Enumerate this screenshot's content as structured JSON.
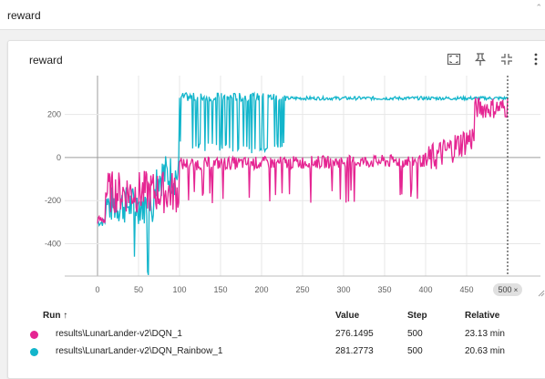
{
  "header": {
    "title": "reward"
  },
  "card": {
    "title": "reward"
  },
  "icons": {
    "fit": "fit-domain-icon",
    "pin": "pin-icon",
    "collapse": "collapse-icon",
    "more": "more-vert-icon"
  },
  "colors": {
    "dqn": "#e52592",
    "rainbow": "#12b5cb",
    "grid": "#e7e7e7",
    "axis": "#9e9e9e"
  },
  "chart_data": {
    "type": "line",
    "title": "reward",
    "xlabel": "",
    "ylabel": "",
    "xlim": [
      -40,
      540
    ],
    "ylim": [
      -550,
      380
    ],
    "x_ticks": [
      0,
      50,
      100,
      150,
      200,
      250,
      300,
      350,
      400,
      450
    ],
    "y_ticks": [
      200,
      0,
      -200,
      -400
    ],
    "hover_step": 500,
    "hover_label": "500",
    "grid": true,
    "series": [
      {
        "name": "results\\LunarLander-v2\\DQN_1",
        "color": "#e52592"
      },
      {
        "name": "results\\LunarLander-v2\\DQN_Rainbow_1",
        "color": "#12b5cb"
      }
    ]
  },
  "table": {
    "headers": {
      "run": "Run ↑",
      "value": "Value",
      "step": "Step",
      "relative": "Relative"
    },
    "rows": [
      {
        "color": "#e52592",
        "run": "results\\LunarLander-v2\\DQN_1",
        "value": "276.1495",
        "step": "500",
        "relative": "23.13 min"
      },
      {
        "color": "#12b5cb",
        "run": "results\\LunarLander-v2\\DQN_Rainbow_1",
        "value": "281.2773",
        "step": "500",
        "relative": "20.63 min"
      }
    ]
  }
}
